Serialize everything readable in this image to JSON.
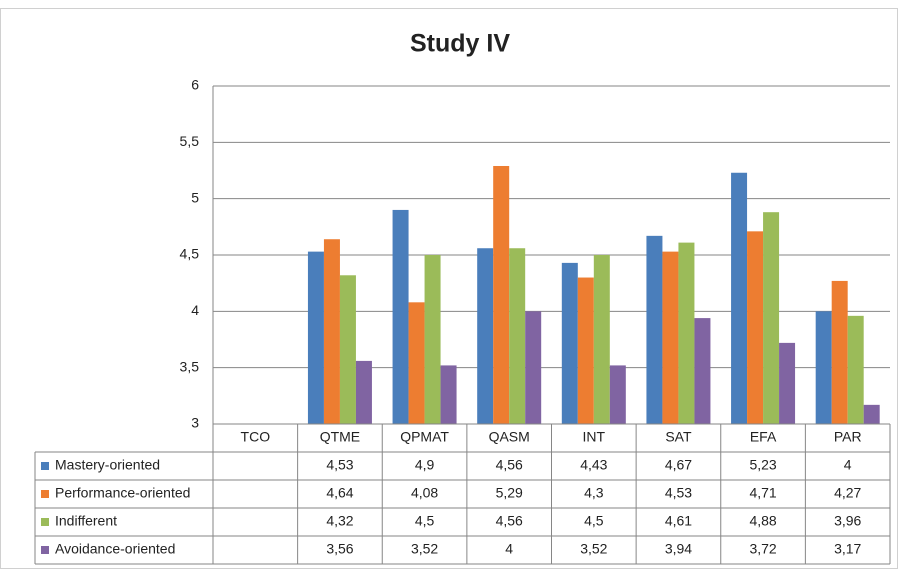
{
  "chart_data": {
    "type": "bar",
    "title": "Study IV",
    "categories": [
      "TCO",
      "QTME",
      "QPMAT",
      "QASM",
      "INT",
      "SAT",
      "EFA",
      "PAR"
    ],
    "series": [
      {
        "name": "Mastery-oriented",
        "color": "#4a7ebb",
        "values": [
          null,
          4.53,
          4.9,
          4.56,
          4.43,
          4.67,
          5.23,
          4
        ],
        "value_labels": [
          null,
          "4,53",
          "4,9",
          "4,56",
          "4,43",
          "4,67",
          "5,23",
          "4"
        ]
      },
      {
        "name": "Performance-oriented",
        "color": "#ed7d31",
        "values": [
          null,
          4.64,
          4.08,
          5.29,
          4.3,
          4.53,
          4.71,
          4.27
        ],
        "value_labels": [
          null,
          "4,64",
          "4,08",
          "5,29",
          "4,3",
          "4,53",
          "4,71",
          "4,27"
        ]
      },
      {
        "name": "Indifferent",
        "color": "#9bbb59",
        "values": [
          null,
          4.32,
          4.5,
          4.56,
          4.5,
          4.61,
          4.88,
          3.96
        ],
        "value_labels": [
          null,
          "4,32",
          "4,5",
          "4,56",
          "4,5",
          "4,61",
          "4,88",
          "3,96"
        ]
      },
      {
        "name": "Avoidance-oriented",
        "color": "#8064a2",
        "values": [
          null,
          3.56,
          3.52,
          4,
          3.52,
          3.94,
          3.72,
          3.17
        ],
        "value_labels": [
          null,
          "3,56",
          "3,52",
          "4",
          "3,52",
          "3,94",
          "3,72",
          "3,17"
        ]
      }
    ],
    "ylim": [
      3,
      6
    ],
    "yticks": [
      3,
      {
        "value": 3.5,
        "label": "3,5"
      },
      4,
      {
        "value": 4.5,
        "label": "4,5"
      },
      5,
      {
        "value": 5.5,
        "label": "5,5"
      },
      6
    ],
    "grid": true
  }
}
